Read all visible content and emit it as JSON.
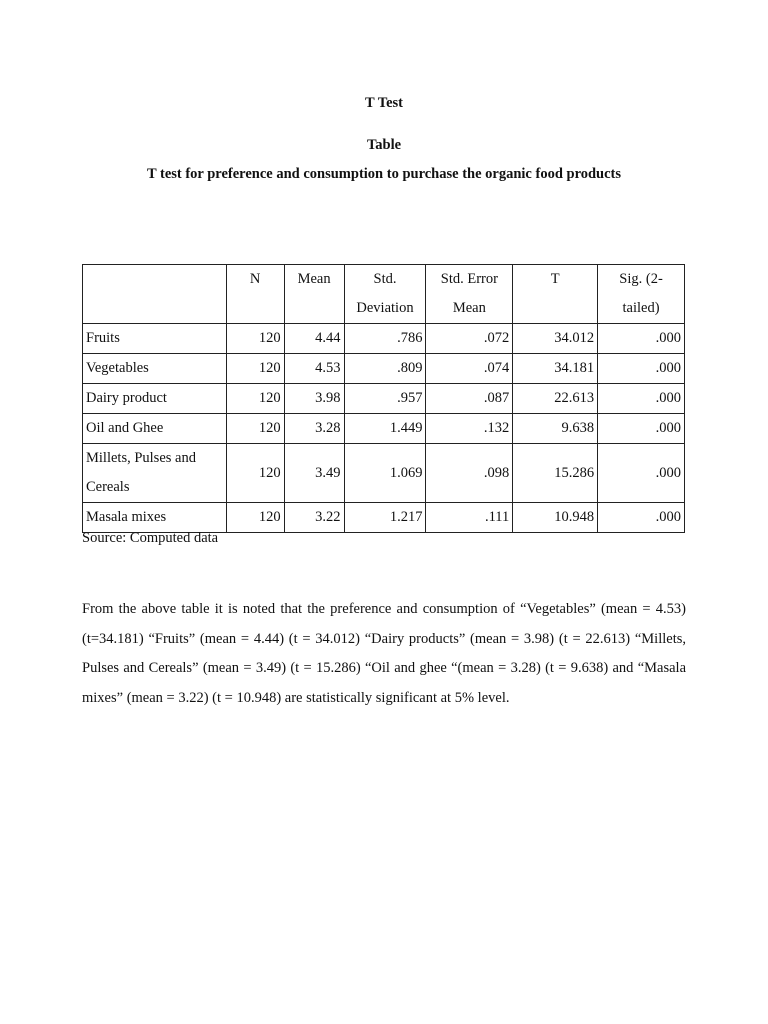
{
  "heading": "T Test",
  "table_label": "Table",
  "table_caption": "T test for preference and consumption to purchase the organic food products",
  "table": {
    "headers": [
      "",
      "N",
      "Mean",
      "Std. Deviation",
      "Std. Error Mean",
      "T",
      "Sig. (2-tailed)"
    ],
    "rows": [
      [
        "Fruits",
        "120",
        "4.44",
        ".786",
        ".072",
        "34.012",
        ".000"
      ],
      [
        "Vegetables",
        "120",
        "4.53",
        ".809",
        ".074",
        "34.181",
        ".000"
      ],
      [
        "Dairy product",
        "120",
        "3.98",
        ".957",
        ".087",
        "22.613",
        ".000"
      ],
      [
        "Oil and Ghee",
        "120",
        "3.28",
        "1.449",
        ".132",
        "9.638",
        ".000"
      ],
      [
        "Millets, Pulses and Cereals",
        "120",
        "3.49",
        "1.069",
        ".098",
        "15.286",
        ".000"
      ],
      [
        "Masala mixes",
        "120",
        "3.22",
        "1.217",
        ".111",
        "10.948",
        ".000"
      ]
    ]
  },
  "source": "Source: Computed data",
  "paragraph": "From the above table it is noted that the preference and consumption of “Vegetables” (mean = 4.53) (t=34.181) “Fruits” (mean = 4.44) (t = 34.012) “Dairy products” (mean = 3.98) (t = 22.613) “Millets, Pulses and Cereals” (mean = 3.49) (t = 15.286) “Oil and ghee “(mean = 3.28) (t = 9.638)  and “Masala mixes” (mean = 3.22) (t = 10.948) are statistically significant at 5% level."
}
